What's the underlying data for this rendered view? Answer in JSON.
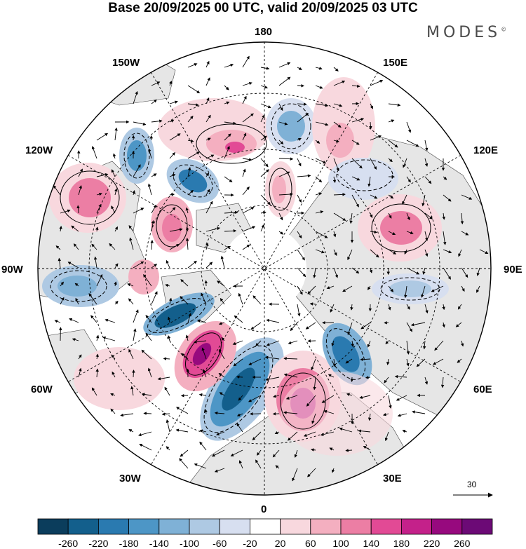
{
  "title": "Base 20/09/2025 00 UTC, valid 20/09/2025 03 UTC",
  "brand": "MODES",
  "brand_mark": "©",
  "longitude_labels": [
    "180",
    "150E",
    "120E",
    "90E",
    "60E",
    "30E",
    "0",
    "30W",
    "60W",
    "90W",
    "120W",
    "150W"
  ],
  "reference_vector_label": "30",
  "colorbar": {
    "ticks": [
      "-260",
      "-220",
      "-180",
      "-140",
      "-100",
      "-60",
      "-20",
      "20",
      "60",
      "100",
      "140",
      "180",
      "220",
      "260"
    ],
    "colors": [
      "#0b3d5c",
      "#135f8c",
      "#2a7ab0",
      "#4d96c6",
      "#7fb1d6",
      "#aec9e3",
      "#d7dff0",
      "#ffffff",
      "#f8d8de",
      "#f4afc0",
      "#ec7ea4",
      "#e24a95",
      "#c4218a",
      "#97097e",
      "#6c0a76"
    ]
  },
  "colors": {
    "land": "#e6e6e6",
    "ocean": "#ffffff",
    "contour": "#000000",
    "grid": "#000000"
  }
}
